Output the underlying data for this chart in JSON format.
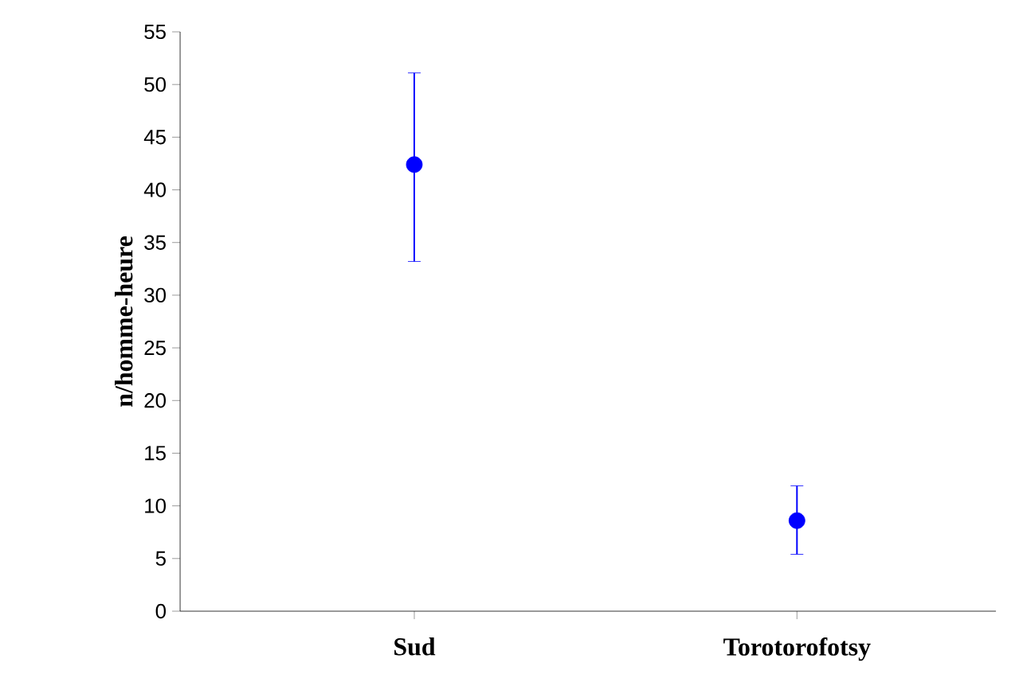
{
  "chart_data": {
    "type": "scatter",
    "ylabel": "n/homme-heure",
    "categories": [
      "Sud",
      "Torotorofotsy"
    ],
    "values": [
      42.4,
      8.6
    ],
    "errors": [
      [
        33.2,
        51.1
      ],
      [
        5.4,
        11.9
      ]
    ],
    "color": "#0000ff",
    "marker": "circle",
    "grid": false,
    "ylim": [
      0,
      55
    ],
    "yticks": [
      0,
      5,
      10,
      15,
      20,
      25,
      30,
      35,
      40,
      45,
      50,
      55
    ]
  }
}
